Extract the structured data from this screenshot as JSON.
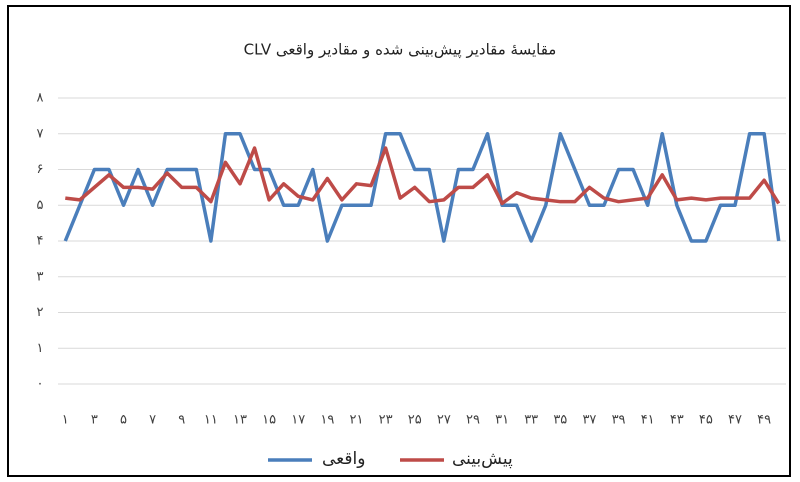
{
  "chart_data": {
    "type": "line",
    "title": "مقایسهٔ مقادیر پیش‌بینی شده و مقادیر واقعی CLV",
    "categories": [
      "۱",
      null,
      "۳",
      null,
      "۵",
      null,
      "۷",
      null,
      "۹",
      null,
      "۱۱",
      null,
      "۱۳",
      null,
      "۱۵",
      null,
      "۱۷",
      null,
      "۱۹",
      null,
      "۲۱",
      null,
      "۲۳",
      null,
      "۲۵",
      null,
      "۲۷",
      null,
      "۲۹",
      null,
      "۳۱",
      null,
      "۳۳",
      null,
      "۳۵",
      null,
      "۳۷",
      null,
      "۳۹",
      null,
      "۴۱",
      null,
      "۴۳",
      null,
      "۴۵",
      null,
      "۴۷",
      null,
      "۴۹",
      null
    ],
    "series": [
      {
        "name": "واقعی",
        "color": "#4a7ebb",
        "values": [
          4,
          5,
          6,
          6,
          5,
          6,
          5,
          6,
          6,
          6,
          4,
          7,
          7,
          6,
          6,
          5,
          5,
          6,
          4,
          5,
          5,
          5,
          7,
          7,
          6,
          6,
          4,
          6,
          6,
          7,
          5,
          5,
          4,
          5,
          7,
          6,
          5,
          5,
          6,
          6,
          5,
          7,
          5,
          4,
          4,
          5,
          5,
          7,
          7,
          4
        ]
      },
      {
        "name": "پیش‌بینی",
        "color": "#be4b48",
        "values": [
          5.2,
          5.15,
          5.5,
          5.85,
          5.5,
          5.5,
          5.45,
          5.9,
          5.5,
          5.5,
          5.1,
          6.2,
          5.6,
          6.6,
          5.15,
          5.6,
          5.25,
          5.15,
          5.75,
          5.15,
          5.6,
          5.55,
          6.6,
          5.2,
          5.5,
          5.1,
          5.15,
          5.5,
          5.5,
          5.85,
          5.05,
          5.35,
          5.2,
          5.15,
          5.1,
          5.1,
          5.5,
          5.2,
          5.1,
          5.15,
          5.2,
          5.85,
          5.15,
          5.2,
          5.15,
          5.2,
          5.2,
          5.2,
          5.7,
          5.05
        ]
      }
    ],
    "ylim": [
      0,
      8
    ],
    "yticks": [
      {
        "value": 0,
        "label": "۰"
      },
      {
        "value": 1,
        "label": "۱"
      },
      {
        "value": 2,
        "label": "۲"
      },
      {
        "value": 3,
        "label": "۳"
      },
      {
        "value": 4,
        "label": "۴"
      },
      {
        "value": 5,
        "label": "۵"
      },
      {
        "value": 6,
        "label": "۶"
      },
      {
        "value": 7,
        "label": "۷"
      },
      {
        "value": 8,
        "label": "۸"
      }
    ],
    "grid": true,
    "legend": "bottom"
  }
}
